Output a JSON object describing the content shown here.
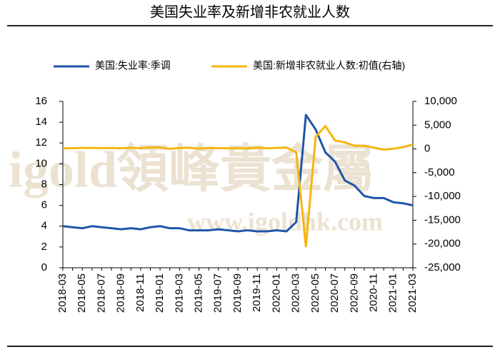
{
  "chart_data": {
    "type": "line",
    "title": "美国失业率及新增非农就业人数",
    "watermark": [
      "igold領峰貴金屬",
      "www.igoldhk.com"
    ],
    "categories": [
      "2018-03",
      null,
      "2018-05",
      null,
      "2018-07",
      null,
      "2018-09",
      null,
      "2018-11",
      null,
      "2019-01",
      null,
      "2019-03",
      null,
      "2019-05",
      null,
      "2019-07",
      null,
      "2019-09",
      null,
      "2019-11",
      null,
      "2020-01",
      null,
      "2020-03",
      null,
      "2020-05",
      null,
      "2020-07",
      null,
      "2020-09",
      null,
      "2020-11",
      null,
      "2021-01",
      null,
      "2021-03"
    ],
    "series": [
      {
        "name": "美国:失业率:季调",
        "color": "#1f56a8",
        "axis": "y",
        "values": [
          4.0,
          3.9,
          3.8,
          4.0,
          3.9,
          3.8,
          3.7,
          3.8,
          3.7,
          3.9,
          4.0,
          3.8,
          3.8,
          3.6,
          3.6,
          3.6,
          3.7,
          3.6,
          3.5,
          3.6,
          3.5,
          3.5,
          3.6,
          3.5,
          4.4,
          14.7,
          13.3,
          11.1,
          10.2,
          8.4,
          7.9,
          6.9,
          6.7,
          6.7,
          6.3,
          6.2,
          6.0
        ]
      },
      {
        "name": "美国:新增非农就业人数:初值(右轴)",
        "color": "#f5b50f",
        "axis": "y2",
        "values": [
          103,
          164,
          223,
          213,
          157,
          201,
          134,
          250,
          155,
          312,
          304,
          20,
          196,
          263,
          75,
          224,
          164,
          130,
          136,
          128,
          266,
          145,
          225,
          273,
          -701,
          -20500,
          2509,
          4800,
          1763,
          1371,
          661,
          638,
          245,
          -140,
          49,
          379,
          916
        ]
      }
    ],
    "ylim": [
      0,
      16
    ],
    "yticks": [
      0,
      2,
      4,
      6,
      8,
      10,
      12,
      14,
      16
    ],
    "y2lim": [
      -25000,
      10000
    ],
    "y2ticks": [
      {
        "value": -25000,
        "label": "-25,000"
      },
      {
        "value": -20000,
        "label": "-20,000"
      },
      {
        "value": -15000,
        "label": "-15,000"
      },
      {
        "value": -10000,
        "label": "-10,000"
      },
      {
        "value": -5000,
        "label": "-5,000"
      },
      0,
      {
        "value": 5000,
        "label": "5,000"
      },
      {
        "value": 10000,
        "label": "10,000"
      }
    ],
    "grid": false
  }
}
